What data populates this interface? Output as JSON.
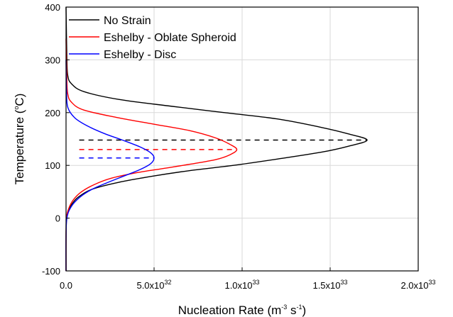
{
  "chart_data": {
    "type": "line",
    "x_axis": {
      "label_main": "Nucleation Rate (m",
      "label_sup1": "-3",
      "label_mid": " s",
      "label_sup2": "-1",
      "label_end": ")",
      "range": [
        0,
        2e+33
      ],
      "ticks": [
        {
          "value": 0,
          "text": "0.0",
          "base": "",
          "exp": ""
        },
        {
          "value": 5e+32,
          "text": "",
          "base": "5.0x10",
          "exp": "32"
        },
        {
          "value": 1e+33,
          "text": "",
          "base": "1.0x10",
          "exp": "33"
        },
        {
          "value": 1.5e+33,
          "text": "",
          "base": "1.5x10",
          "exp": "33"
        },
        {
          "value": 2e+33,
          "text": "",
          "base": "2.0x10",
          "exp": "33"
        }
      ]
    },
    "y_axis": {
      "label_main": "Temperature (",
      "label_deg": "o",
      "label_end": "C)",
      "range": [
        -100,
        400
      ],
      "ticks": [
        -100,
        0,
        100,
        200,
        300,
        400
      ]
    },
    "grid": true,
    "legend_position": "top-left",
    "series": [
      {
        "name": "No Strain",
        "color": "#000000",
        "peak_temperature": 148,
        "peak_rate": 1.71e+33,
        "points": [
          [
            0,
            400
          ],
          [
            5e+30,
            300
          ],
          [
            1e+31,
            270
          ],
          [
            3e+31,
            255
          ],
          [
            1e+32,
            240
          ],
          [
            3e+32,
            225
          ],
          [
            6e+32,
            212
          ],
          [
            9e+32,
            200
          ],
          [
            1.2e+33,
            188
          ],
          [
            1.45e+33,
            172
          ],
          [
            1.6e+33,
            160
          ],
          [
            1.71e+33,
            148
          ],
          [
            1.6e+33,
            136
          ],
          [
            1.45e+33,
            125
          ],
          [
            1.2e+33,
            112
          ],
          [
            9.5e+32,
            100
          ],
          [
            7e+32,
            90
          ],
          [
            5e+32,
            80
          ],
          [
            3e+32,
            68
          ],
          [
            1.5e+32,
            55
          ],
          [
            7e+31,
            40
          ],
          [
            3e+31,
            25
          ],
          [
            1e+31,
            10
          ],
          [
            2e+30,
            0
          ],
          [
            0,
            -30
          ],
          [
            0,
            -100
          ]
        ]
      },
      {
        "name": "Eshelby - Oblate Spheroid",
        "color": "#ff0000",
        "peak_temperature": 130,
        "peak_rate": 9.7e+32,
        "points": [
          [
            0,
            340
          ],
          [
            5e+30,
            260
          ],
          [
            1e+31,
            235
          ],
          [
            3e+31,
            220
          ],
          [
            1e+32,
            205
          ],
          [
            3e+32,
            190
          ],
          [
            5e+32,
            178
          ],
          [
            7e+32,
            166
          ],
          [
            8.5e+32,
            152
          ],
          [
            9.3e+32,
            140
          ],
          [
            9.7e+32,
            130
          ],
          [
            9.3e+32,
            120
          ],
          [
            8.5e+32,
            111
          ],
          [
            7e+32,
            102
          ],
          [
            5.5e+32,
            94
          ],
          [
            4e+32,
            86
          ],
          [
            2.5e+32,
            75
          ],
          [
            1.5e+32,
            62
          ],
          [
            8e+31,
            48
          ],
          [
            4e+31,
            34
          ],
          [
            1.5e+31,
            18
          ],
          [
            3e+30,
            0
          ],
          [
            0,
            -40
          ],
          [
            0,
            -100
          ]
        ]
      },
      {
        "name": "Eshelby - Disc",
        "color": "#0000ff",
        "peak_temperature": 114,
        "peak_rate": 5e+32,
        "points": [
          [
            0,
            300
          ],
          [
            3e+30,
            240
          ],
          [
            1e+31,
            210
          ],
          [
            5e+31,
            190
          ],
          [
            1.2e+32,
            175
          ],
          [
            2.2e+32,
            160
          ],
          [
            3.2e+32,
            148
          ],
          [
            4.2e+32,
            135
          ],
          [
            4.8e+32,
            124
          ],
          [
            5e+32,
            114
          ],
          [
            4.8e+32,
            103
          ],
          [
            4.2e+32,
            92
          ],
          [
            3.3e+32,
            80
          ],
          [
            2.4e+32,
            68
          ],
          [
            1.5e+32,
            55
          ],
          [
            8e+31,
            40
          ],
          [
            3e+31,
            22
          ],
          [
            5e+30,
            0
          ],
          [
            0,
            -40
          ],
          [
            0,
            -100
          ]
        ]
      }
    ],
    "reference_lines": [
      {
        "color": "#000000",
        "temperature": 148,
        "x_start": 7.5e+31,
        "x_end": 1.71e+33
      },
      {
        "color": "#ff0000",
        "temperature": 130,
        "x_start": 7.5e+31,
        "x_end": 9.7e+32
      },
      {
        "color": "#0000ff",
        "temperature": 114,
        "x_start": 7.5e+31,
        "x_end": 5e+32
      }
    ]
  }
}
